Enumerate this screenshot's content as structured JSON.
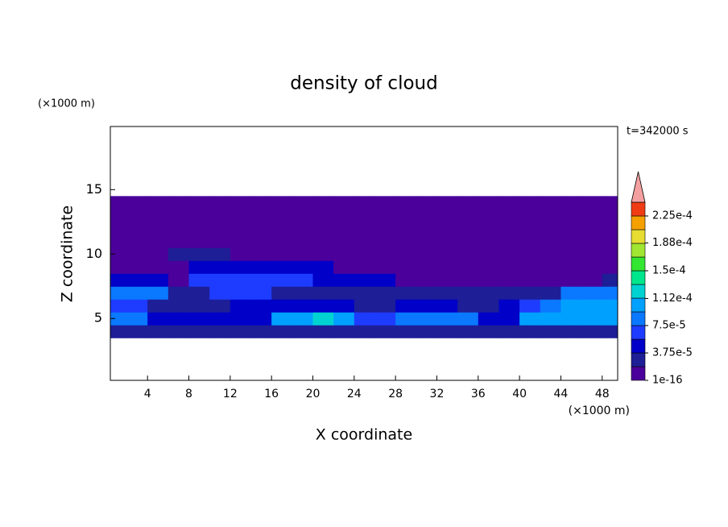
{
  "chart_data": {
    "type": "contour",
    "title": "density of cloud",
    "x_label": "X coordinate",
    "y_label": "Z coordinate",
    "x_unit": "(×1000 m)",
    "y_unit": "(×1000 m)",
    "annotation": "t=342000 s",
    "xlim": [
      0.4,
      49.5
    ],
    "ylim": [
      0.2,
      19.9
    ],
    "xticks": [
      4,
      8,
      12,
      16,
      20,
      24,
      28,
      32,
      36,
      40,
      44,
      48
    ],
    "yticks": [
      5,
      10,
      15
    ],
    "x_bins": [
      0,
      2,
      4,
      6,
      8,
      10,
      12,
      14,
      16,
      18,
      20,
      22,
      24,
      26,
      28,
      30,
      32,
      34,
      36,
      38,
      40,
      42,
      44,
      46,
      48,
      50
    ],
    "z_bins": [
      3.5,
      4.5,
      5.5,
      6.5,
      7.5,
      8.5,
      9.5,
      10.5,
      11.5,
      12.5,
      13.5,
      14.5
    ],
    "z": [
      [
        2.5e-05,
        2.5e-05,
        2.5e-05,
        2.5e-05,
        2.5e-05,
        2.5e-05,
        2.5e-05,
        2.5e-05,
        2.5e-05,
        2.5e-05,
        2.5e-05,
        2.5e-05,
        2.5e-05,
        2.5e-05,
        2.5e-05,
        2.5e-05,
        2.5e-05,
        2.5e-05,
        2.5e-05,
        2.5e-05,
        2.5e-05,
        2.5e-05,
        2.5e-05,
        2.5e-05,
        2.5e-05
      ],
      [
        8e-05,
        8e-05,
        4e-05,
        4e-05,
        5e-05,
        5e-05,
        4e-05,
        4e-05,
        0.0001,
        0.0001,
        0.00013,
        0.0001,
        6e-05,
        6e-05,
        9e-05,
        9e-05,
        9e-05,
        9e-05,
        5e-05,
        5e-05,
        0.0001,
        0.0001,
        0.0001,
        0.0001,
        0.0001
      ],
      [
        6e-05,
        6e-05,
        3e-05,
        3e-05,
        3e-05,
        3e-05,
        4e-05,
        4e-05,
        5e-05,
        5e-05,
        5e-05,
        4e-05,
        3e-05,
        3e-05,
        4e-05,
        4e-05,
        4e-05,
        3e-05,
        3e-05,
        4e-05,
        6e-05,
        8e-05,
        0.00011,
        0.00011,
        0.00011
      ],
      [
        8e-05,
        8e-05,
        8e-05,
        3e-05,
        3e-05,
        6e-05,
        6e-05,
        6e-05,
        2.5e-05,
        2.5e-05,
        2.5e-05,
        2.5e-05,
        2.5e-05,
        2.5e-05,
        2.5e-05,
        2.5e-05,
        2.5e-05,
        2.5e-05,
        2.5e-05,
        2.5e-05,
        2.5e-05,
        2.5e-05,
        9e-05,
        9e-05,
        9e-05
      ],
      [
        4e-05,
        4e-05,
        4e-05,
        1e-05,
        7e-05,
        7e-05,
        7e-05,
        7e-05,
        7e-05,
        7e-05,
        4e-05,
        4e-05,
        4e-05,
        4e-05,
        1e-05,
        1e-05,
        1e-05,
        1e-05,
        1e-05,
        1e-05,
        1e-05,
        1e-05,
        1e-05,
        1e-05,
        2e-05
      ],
      [
        1e-05,
        1e-05,
        1e-05,
        1e-05,
        4e-05,
        4e-05,
        4e-05,
        4e-05,
        4e-05,
        4e-05,
        4e-05,
        1e-05,
        1e-05,
        1e-05,
        1e-05,
        1e-05,
        1e-05,
        1e-05,
        1e-05,
        1e-05,
        1e-05,
        1e-05,
        1e-05,
        1e-05,
        1e-05
      ],
      [
        1e-05,
        1e-05,
        1e-05,
        2.5e-05,
        2.5e-05,
        2.5e-05,
        1e-05,
        1e-05,
        1e-05,
        1e-05,
        1e-05,
        1e-05,
        1e-05,
        1e-05,
        1e-05,
        1e-05,
        1e-05,
        1e-05,
        1e-05,
        1e-05,
        1e-05,
        1e-05,
        1e-05,
        1e-05,
        1e-05
      ],
      [
        1e-05,
        1e-05,
        1e-05,
        1e-05,
        1e-05,
        1e-05,
        1e-05,
        1e-05,
        1e-05,
        1e-05,
        1e-05,
        1e-05,
        1e-05,
        1e-05,
        1e-05,
        1e-05,
        1e-05,
        1e-05,
        1e-05,
        1e-05,
        1e-05,
        1e-05,
        1e-05,
        1e-05,
        1e-05
      ],
      [
        1e-05,
        1e-05,
        1e-05,
        1e-05,
        1e-05,
        1e-05,
        1e-05,
        1e-05,
        1e-05,
        1e-05,
        1e-05,
        1e-05,
        1e-05,
        1e-05,
        1e-05,
        1e-05,
        1e-05,
        1e-05,
        1e-05,
        1e-05,
        1e-05,
        1e-05,
        1e-05,
        1e-05,
        1e-05
      ],
      [
        1e-05,
        1e-05,
        1e-05,
        1e-05,
        1e-05,
        1e-05,
        1e-05,
        1e-05,
        1e-05,
        1e-05,
        1e-05,
        1e-05,
        1e-05,
        1e-05,
        1e-05,
        1e-05,
        1e-05,
        1e-05,
        1e-05,
        1e-05,
        1e-05,
        1e-05,
        1e-05,
        1e-05,
        1e-05
      ],
      [
        1e-05,
        1e-05,
        1e-05,
        1e-05,
        1e-05,
        1e-05,
        1e-05,
        1e-05,
        1e-05,
        1e-05,
        1e-05,
        1e-05,
        1e-05,
        1e-05,
        1e-05,
        1e-05,
        1e-05,
        1e-05,
        1e-05,
        1e-05,
        1e-05,
        1e-05,
        1e-05,
        1e-05,
        1e-05
      ]
    ],
    "levels": [
      1e-16,
      1.875e-05,
      3.75e-05,
      5.625e-05,
      7.5e-05,
      9.375e-05,
      0.0001125,
      0.00013125,
      0.00015,
      0.00016875,
      0.0001875,
      0.00020625,
      0.000225,
      0.00024375
    ],
    "colors": [
      "#4b009b",
      "#1e1e96",
      "#0000c8",
      "#1e3cff",
      "#0a78ff",
      "#00a0ff",
      "#00d2d2",
      "#00e68c",
      "#32e632",
      "#a0e632",
      "#e6dc32",
      "#f5a000",
      "#f03c14"
    ],
    "extend_color": "#f4a0a0",
    "colorbar_ticks": [
      1e-16,
      {
        "value": 3.75e-05,
        "label": "3.75e-5"
      },
      {
        "value": 7.5e-05,
        "label": "7.5e-5"
      },
      {
        "value": 0.000112,
        "label": "1.12e-4"
      },
      {
        "value": 0.00015,
        "label": "1.5e-4"
      },
      {
        "value": 0.000188,
        "label": "1.88e-4"
      },
      {
        "value": 0.000225,
        "label": "2.25e-4"
      }
    ]
  }
}
